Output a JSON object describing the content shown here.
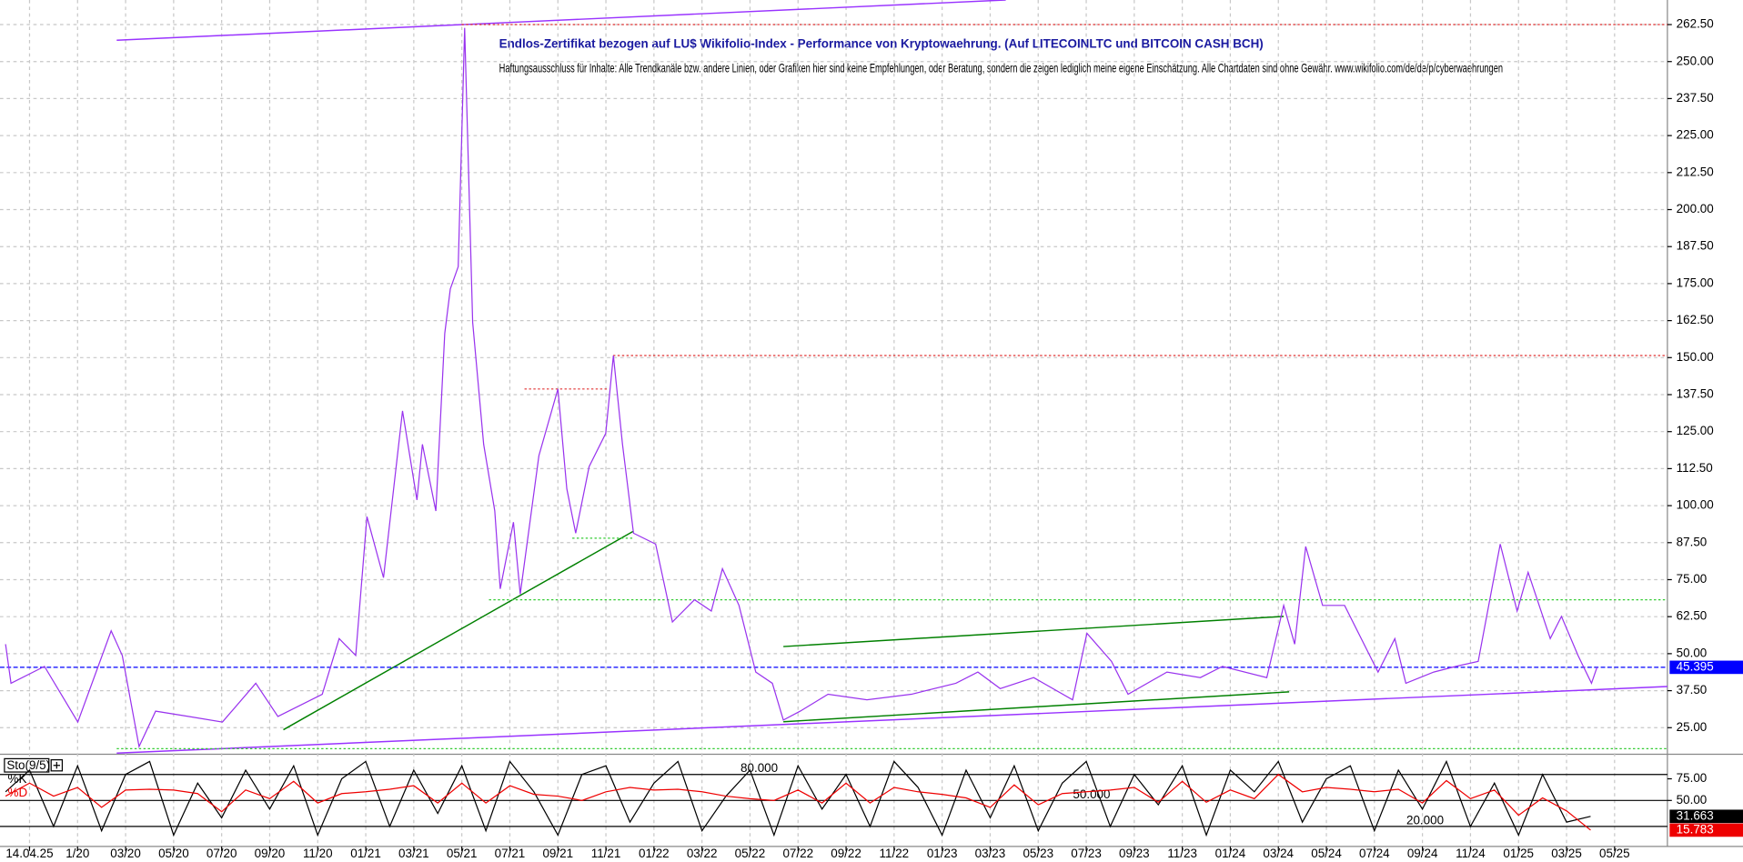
{
  "chart_data": [
    {
      "type": "line",
      "title": "Endlos-Zertifikat bezogen auf LU$ Wikifolio-Index - Performance von Kryptowaehrung. (Auf LITECOINLTC und BITCOIN CASH BCH)",
      "subtitle": "Haftungsausschluss für Inhalte: Alle Trendkanäle bzw. andere Linien, oder Grafiken hier sind keine Empfehlungen, oder Beratung, sondern die zeigen lediglich meine eigene Einschätzung. Alle Chartdaten sind ohne Gewähr. www.wikifolio.com/de/de/p/cyberwaehrungen",
      "xlim": [
        -3.23,
        66.2
      ],
      "xticks": [
        {
          "value": -2,
          "label": "14.04.25"
        },
        {
          "value": 0,
          "label": "1/20"
        },
        {
          "value": 2,
          "label": "03/20"
        },
        {
          "value": 4,
          "label": "05/20"
        },
        {
          "value": 6,
          "label": "07/20"
        },
        {
          "value": 8,
          "label": "09/20"
        },
        {
          "value": 10,
          "label": "11/20"
        },
        {
          "value": 12,
          "label": "01/21"
        },
        {
          "value": 14,
          "label": "03/21"
        },
        {
          "value": 16,
          "label": "05/21"
        },
        {
          "value": 18,
          "label": "07/21"
        },
        {
          "value": 20,
          "label": "09/21"
        },
        {
          "value": 22,
          "label": "11/21"
        },
        {
          "value": 24,
          "label": "01/22"
        },
        {
          "value": 26,
          "label": "03/22"
        },
        {
          "value": 28,
          "label": "05/22"
        },
        {
          "value": 30,
          "label": "07/22"
        },
        {
          "value": 32,
          "label": "09/22"
        },
        {
          "value": 34,
          "label": "11/22"
        },
        {
          "value": 36,
          "label": "01/23"
        },
        {
          "value": 38,
          "label": "03/23"
        },
        {
          "value": 40,
          "label": "05/23"
        },
        {
          "value": 42,
          "label": "07/23"
        },
        {
          "value": 44,
          "label": "09/23"
        },
        {
          "value": 46,
          "label": "11/23"
        },
        {
          "value": 48,
          "label": "01/24"
        },
        {
          "value": 50,
          "label": "03/24"
        },
        {
          "value": 52,
          "label": "05/24"
        },
        {
          "value": 54,
          "label": "07/24"
        },
        {
          "value": 56,
          "label": "09/24"
        },
        {
          "value": 58,
          "label": "11/24"
        },
        {
          "value": 60,
          "label": "01/25"
        },
        {
          "value": 62,
          "label": "03/25"
        },
        {
          "value": 64,
          "label": "05/25"
        }
      ],
      "ylim": [
        16.4,
        270.8
      ],
      "yticks": [
        {
          "value": 25,
          "label": "25.00"
        },
        {
          "value": 37.5,
          "label": "37.50"
        },
        {
          "value": 50,
          "label": "50.00"
        },
        {
          "value": 62.5,
          "label": "62.50"
        },
        {
          "value": 75,
          "label": "75.00"
        },
        {
          "value": 87.5,
          "label": "87.50"
        },
        {
          "value": 100,
          "label": "100.00"
        },
        {
          "value": 112.5,
          "label": "112.50"
        },
        {
          "value": 125,
          "label": "125.00"
        },
        {
          "value": 137.5,
          "label": "137.50"
        },
        {
          "value": 150,
          "label": "150.00"
        },
        {
          "value": 162.5,
          "label": "162.50"
        },
        {
          "value": 175,
          "label": "175.00"
        },
        {
          "value": 187.5,
          "label": "187.50"
        },
        {
          "value": 200,
          "label": "200.00"
        },
        {
          "value": 212.5,
          "label": "212.50"
        },
        {
          "value": 225,
          "label": "225.00"
        },
        {
          "value": 237.5,
          "label": "237.50"
        },
        {
          "value": 250,
          "label": "250.00"
        },
        {
          "value": 262.5,
          "label": "262.50"
        }
      ],
      "grid": true,
      "series": [
        {
          "color": "#9933ee",
          "x": [
            -3.0,
            -2.77,
            -1.38,
            0.01,
            1.4,
            1.86,
            2.56,
            3.25,
            4.64,
            6.03,
            7.42,
            8.34,
            10.19,
            10.89,
            11.58,
            12.05,
            12.74,
            13.53,
            14.13,
            14.36,
            14.92,
            15.29,
            15.52,
            15.85,
            16.12,
            16.45,
            16.91,
            17.37,
            17.6,
            18.15,
            18.43,
            19.21,
            20.0,
            20.37,
            20.74,
            21.3,
            21.99,
            22.31,
            22.69,
            23.15,
            24.07,
            24.77,
            25.69,
            26.39,
            26.85,
            27.54,
            28.24,
            28.93,
            29.39,
            30.09,
            31.25,
            32.87,
            34.72,
            36.57,
            37.49,
            38.42,
            39.81,
            41.43,
            42.03,
            43.05,
            43.74,
            45.36,
            46.75,
            47.67,
            49.52,
            50.22,
            50.68,
            51.14,
            51.84,
            52.76,
            54.15,
            54.85,
            55.31,
            56.47,
            57.39,
            58.32,
            59.24,
            59.94,
            60.4,
            61.32,
            61.79,
            62.48,
            63.04,
            63.27
          ],
          "values": [
            53.2,
            40.0,
            45.7,
            26.9,
            57.7,
            49.4,
            18.6,
            30.6,
            28.8,
            26.9,
            40.0,
            28.8,
            36.3,
            55.1,
            49.4,
            96.3,
            75.7,
            132.0,
            101.9,
            120.7,
            98.2,
            158.2,
            173.2,
            180.7,
            261.4,
            162.0,
            120.7,
            98.2,
            71.9,
            94.4,
            70.1,
            116.9,
            139.4,
            105.7,
            90.7,
            113.2,
            124.4,
            150.7,
            120.7,
            90.7,
            87.0,
            60.7,
            68.2,
            64.4,
            78.7,
            66.3,
            43.8,
            40.0,
            27.6,
            30.6,
            36.3,
            34.4,
            36.3,
            40.0,
            43.8,
            38.2,
            41.9,
            34.4,
            56.9,
            47.4,
            36.3,
            43.8,
            41.9,
            45.7,
            41.9,
            66.3,
            53.2,
            86.2,
            66.3,
            66.3,
            43.8,
            55.1,
            40.0,
            43.8,
            45.7,
            47.4,
            87.0,
            64.4,
            77.5,
            55.1,
            62.6,
            49.4,
            40.0,
            45.395
          ]
        }
      ],
      "last_value": 45.395,
      "last_value_color": "#0000ff",
      "lines": [
        {
          "x": [
            1.63,
            38.65
          ],
          "y": [
            257.2,
            270.8
          ],
          "color": "#9933ff",
          "dash": false
        },
        {
          "x": [
            1.63,
            66.2
          ],
          "y": [
            16.4,
            38.9
          ],
          "color": "#9933ff",
          "dash": false
        },
        {
          "x": [
            8.57,
            23.15
          ],
          "y": [
            24.3,
            91.4
          ],
          "color": "#008000",
          "dash": false
        },
        {
          "x": [
            29.39,
            50.22
          ],
          "y": [
            52.4,
            62.6
          ],
          "color": "#008000",
          "dash": false
        },
        {
          "x": [
            29.39,
            50.45
          ],
          "y": [
            27.0,
            37.1
          ],
          "color": "#008000",
          "dash": false
        },
        {
          "x": [
            15.99,
            66.2
          ],
          "y": [
            262.5,
            262.5
          ],
          "color": "#e03030",
          "dash": true
        },
        {
          "x": [
            22.3,
            66.2
          ],
          "y": [
            150.7,
            150.7
          ],
          "color": "#e03030",
          "dash": true
        },
        {
          "x": [
            18.61,
            22.13
          ],
          "y": [
            139.4,
            139.4
          ],
          "color": "#e03030",
          "dash": true
        },
        {
          "x": [
            17.13,
            66.2
          ],
          "y": [
            68.2,
            68.2
          ],
          "color": "#33cc33",
          "dash": true
        },
        {
          "x": [
            20.6,
            23.15
          ],
          "y": [
            89.0,
            89.0
          ],
          "color": "#33cc33",
          "dash": true
        },
        {
          "x": [
            1.63,
            66.2
          ],
          "y": [
            17.9,
            17.9
          ],
          "color": "#33cc33",
          "dash": true
        }
      ]
    },
    {
      "type": "line",
      "title": "Sto(9/5)",
      "ylim": [
        0,
        100
      ],
      "yticks": [
        {
          "value": 75,
          "label": "75.00"
        },
        {
          "value": 50,
          "label": "50.00"
        }
      ],
      "levels": [
        {
          "value": 80,
          "label": "80.000"
        },
        {
          "value": 50,
          "label": "50.000"
        },
        {
          "value": 20,
          "label": "20.000"
        }
      ],
      "x": [
        -3,
        -2,
        -1,
        0,
        1,
        2,
        3,
        4,
        5,
        6,
        7,
        8,
        9,
        10,
        11,
        12,
        13,
        14,
        15,
        16,
        17,
        18,
        19,
        20,
        21,
        22,
        23,
        24,
        25,
        26,
        27,
        28,
        29,
        30,
        31,
        32,
        33,
        34,
        35,
        36,
        37,
        38,
        39,
        40,
        41,
        42,
        43,
        44,
        45,
        46,
        47,
        48,
        49,
        50,
        51,
        52,
        53,
        54,
        55,
        56,
        57,
        58,
        59,
        60,
        61,
        62,
        63
      ],
      "series": [
        {
          "name": "%K",
          "color": "#000000",
          "values": [
            60,
            85,
            20,
            90,
            15,
            80,
            95,
            10,
            70,
            30,
            85,
            40,
            90,
            10,
            75,
            95,
            20,
            85,
            35,
            90,
            15,
            95,
            60,
            10,
            80,
            90,
            25,
            70,
            95,
            15,
            55,
            85,
            10,
            90,
            40,
            80,
            20,
            95,
            65,
            10,
            85,
            30,
            90,
            15,
            70,
            95,
            20,
            80,
            45,
            90,
            10,
            85,
            60,
            95,
            25,
            75,
            90,
            15,
            85,
            40,
            95,
            20,
            70,
            10,
            80,
            25,
            31.663
          ]
        },
        {
          "name": "%D",
          "color": "#ee0000",
          "values": [
            55,
            70,
            55,
            65,
            42,
            62,
            63,
            62,
            58,
            37,
            62,
            52,
            72,
            47,
            58,
            60,
            63,
            67,
            47,
            70,
            47,
            67,
            57,
            55,
            50,
            60,
            65,
            62,
            63,
            60,
            55,
            52,
            50,
            62,
            47,
            70,
            47,
            65,
            60,
            57,
            53,
            42,
            68,
            45,
            58,
            60,
            62,
            65,
            48,
            72,
            48,
            62,
            52,
            80,
            60,
            65,
            63,
            60,
            63,
            47,
            73,
            52,
            62,
            33,
            53,
            38,
            15.783
          ]
        }
      ]
    }
  ]
}
